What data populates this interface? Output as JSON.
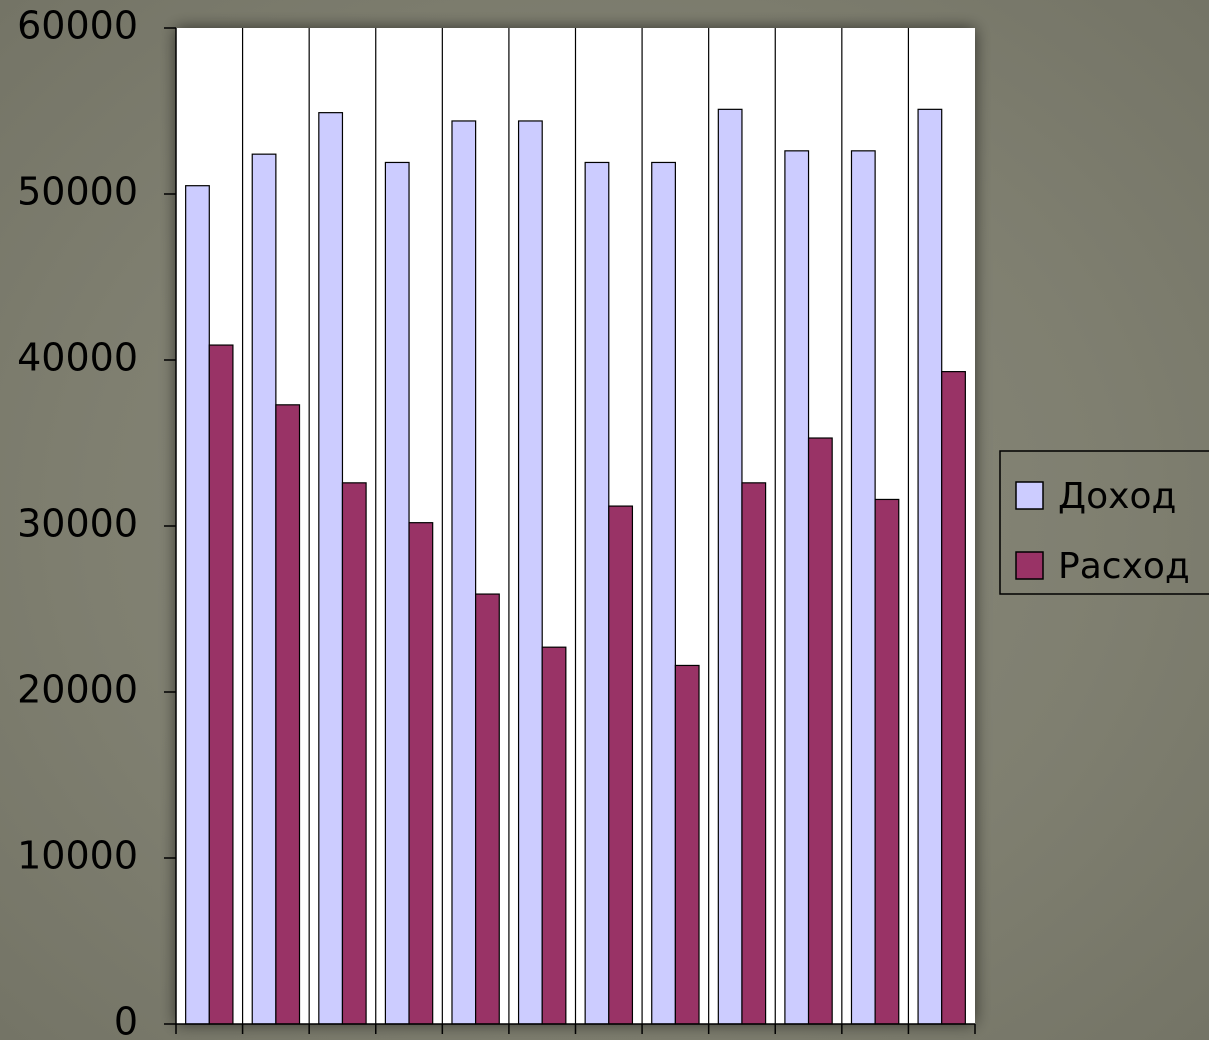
{
  "chart_data": {
    "type": "bar",
    "title": "",
    "xlabel": "",
    "ylabel": "",
    "ylim": [
      0,
      60000
    ],
    "yticks": [
      0,
      10000,
      20000,
      30000,
      40000,
      50000,
      60000
    ],
    "ytick_labels": [
      "0",
      "10000",
      "20000",
      "30000",
      "40000",
      "50000",
      "60000"
    ],
    "categories": [
      "",
      "",
      "",
      "",
      "",
      "",
      "",
      "",
      "",
      "",
      "",
      ""
    ],
    "grid": "vertical category dividers",
    "legend_position": "right",
    "series": [
      {
        "name": "Доход",
        "color": "#ccccff",
        "values": [
          50500,
          52400,
          54900,
          51900,
          54400,
          54400,
          51900,
          51900,
          55100,
          52600,
          52600,
          55100
        ]
      },
      {
        "name": "Расход",
        "color": "#993366",
        "values": [
          40900,
          37300,
          32600,
          30200,
          25900,
          22700,
          31200,
          21600,
          32600,
          35300,
          31600,
          39300
        ]
      }
    ]
  }
}
